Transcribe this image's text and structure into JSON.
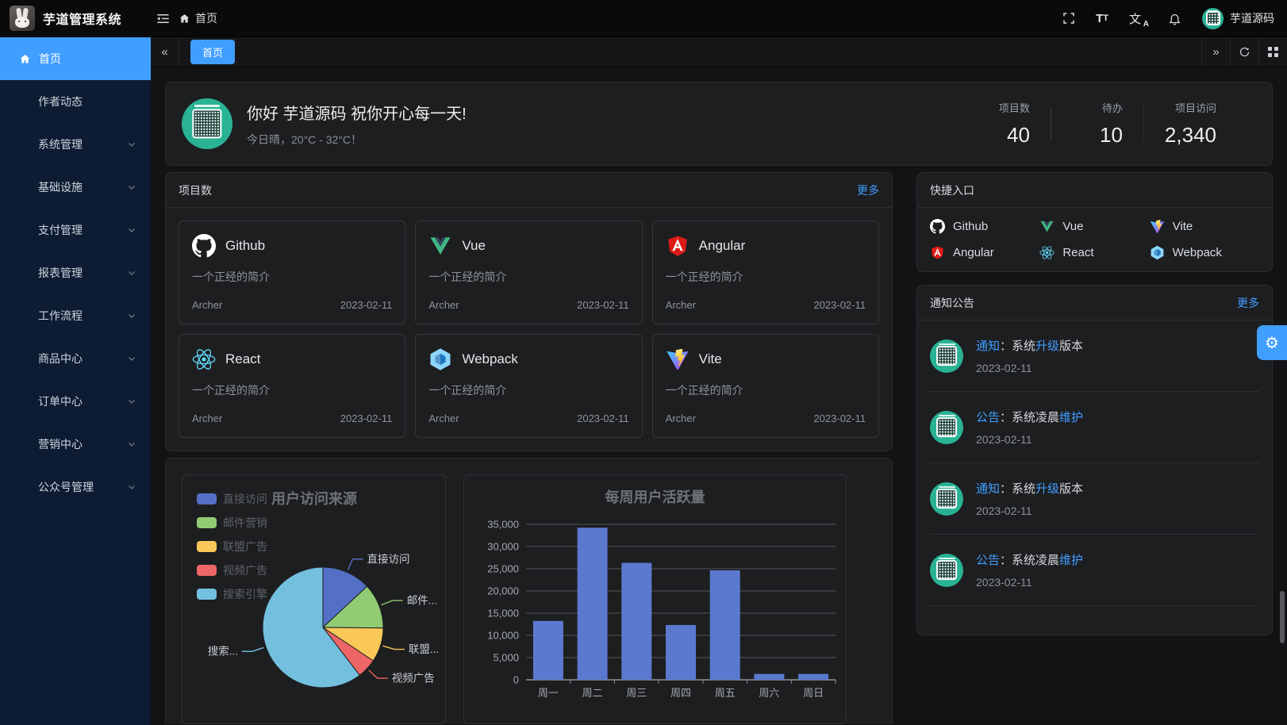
{
  "app": {
    "title": "芋道管理系统",
    "user_name": "芋道源码"
  },
  "topbar": {
    "breadcrumb": "首页",
    "icons": [
      "fullscreen-icon",
      "font-size-icon",
      "locale-icon",
      "bell-icon"
    ]
  },
  "tabs": {
    "active_label": "首页"
  },
  "sidebar": {
    "items": [
      {
        "key": "home",
        "label": "首页",
        "active": true,
        "icon": "home-icon",
        "expandable": false
      },
      {
        "key": "author-trends",
        "label": "作者动态",
        "expandable": false
      },
      {
        "key": "system",
        "label": "系统管理",
        "expandable": true
      },
      {
        "key": "infrastructure",
        "label": "基础设施",
        "expandable": true
      },
      {
        "key": "payment",
        "label": "支付管理",
        "expandable": true
      },
      {
        "key": "report",
        "label": "报表管理",
        "expandable": true
      },
      {
        "key": "workflow",
        "label": "工作流程",
        "expandable": true
      },
      {
        "key": "product-center",
        "label": "商品中心",
        "expandable": true
      },
      {
        "key": "order-center",
        "label": "订单中心",
        "expandable": true
      },
      {
        "key": "marketing-center",
        "label": "营销中心",
        "expandable": true
      },
      {
        "key": "official-account",
        "label": "公众号管理",
        "expandable": true
      }
    ]
  },
  "greeting": {
    "title": "你好 芋道源码 祝你开心每一天!",
    "subtitle": "今日晴，20°C - 32°C！",
    "stats": [
      {
        "label": "项目数",
        "value": "40"
      },
      {
        "label": "待办",
        "value": "10"
      },
      {
        "label": "项目访问",
        "value": "2,340"
      }
    ]
  },
  "projects": {
    "title": "项目数",
    "more": "更多",
    "desc": "一个正经的简介",
    "author": "Archer",
    "date": "2023-02-11",
    "items": [
      {
        "name": "Github",
        "icon": "github-icon"
      },
      {
        "name": "Vue",
        "icon": "vue-icon"
      },
      {
        "name": "Angular",
        "icon": "angular-icon"
      },
      {
        "name": "React",
        "icon": "react-icon"
      },
      {
        "name": "Webpack",
        "icon": "webpack-icon"
      },
      {
        "name": "Vite",
        "icon": "vite-icon"
      }
    ]
  },
  "shortcuts": {
    "title": "快捷入口",
    "items": [
      {
        "name": "Github",
        "icon": "github-icon"
      },
      {
        "name": "Vue",
        "icon": "vue-icon"
      },
      {
        "name": "Vite",
        "icon": "vite-icon"
      },
      {
        "name": "Angular",
        "icon": "angular-icon"
      },
      {
        "name": "React",
        "icon": "react-icon"
      },
      {
        "name": "Webpack",
        "icon": "webpack-icon"
      }
    ]
  },
  "notices": {
    "title": "通知公告",
    "more": "更多",
    "items": [
      {
        "segments": [
          {
            "text": "通知",
            "accent": true
          },
          {
            "text": "：系统"
          },
          {
            "text": "升级",
            "accent": true
          },
          {
            "text": "版本"
          }
        ],
        "date": "2023-02-11"
      },
      {
        "segments": [
          {
            "text": "公告",
            "accent": true
          },
          {
            "text": "：系统凌晨"
          },
          {
            "text": "维护",
            "accent": true
          }
        ],
        "date": "2023-02-11"
      },
      {
        "segments": [
          {
            "text": "通知",
            "accent": true
          },
          {
            "text": "：系统"
          },
          {
            "text": "升级",
            "accent": true
          },
          {
            "text": "版本"
          }
        ],
        "date": "2023-02-11"
      },
      {
        "segments": [
          {
            "text": "公告",
            "accent": true
          },
          {
            "text": "：系统凌晨"
          },
          {
            "text": "维护",
            "accent": true
          }
        ],
        "date": "2023-02-11"
      }
    ]
  },
  "colors": {
    "accent": "#409eff",
    "sidebar_bg": "#0d1c33",
    "card_bg": "#1d1e20",
    "avatar_green": "#29b294"
  },
  "chart_data": [
    {
      "type": "pie",
      "title": "用户访问来源",
      "legend": [
        "直接访问",
        "邮件营销",
        "联盟广告",
        "视频广告",
        "搜索引擎"
      ],
      "labels_display": [
        "直接访问",
        "邮件...",
        "联盟...",
        "视频广告",
        "搜索..."
      ],
      "values": [
        335,
        310,
        234,
        135,
        1548
      ],
      "colors": [
        "#5470c6",
        "#91cc75",
        "#fac858",
        "#ee6666",
        "#73c0de"
      ],
      "legend_position": "top-left"
    },
    {
      "type": "bar",
      "title": "每周用户活跃量",
      "categories": [
        "周一",
        "周二",
        "周三",
        "周四",
        "周五",
        "周六",
        "周日"
      ],
      "values": [
        13253,
        34235,
        26321,
        12340,
        24643,
        1322,
        1324
      ],
      "ylim": [
        0,
        35000
      ],
      "ytick_step": 5000,
      "bar_color": "#5b79cf",
      "grid": true
    }
  ]
}
